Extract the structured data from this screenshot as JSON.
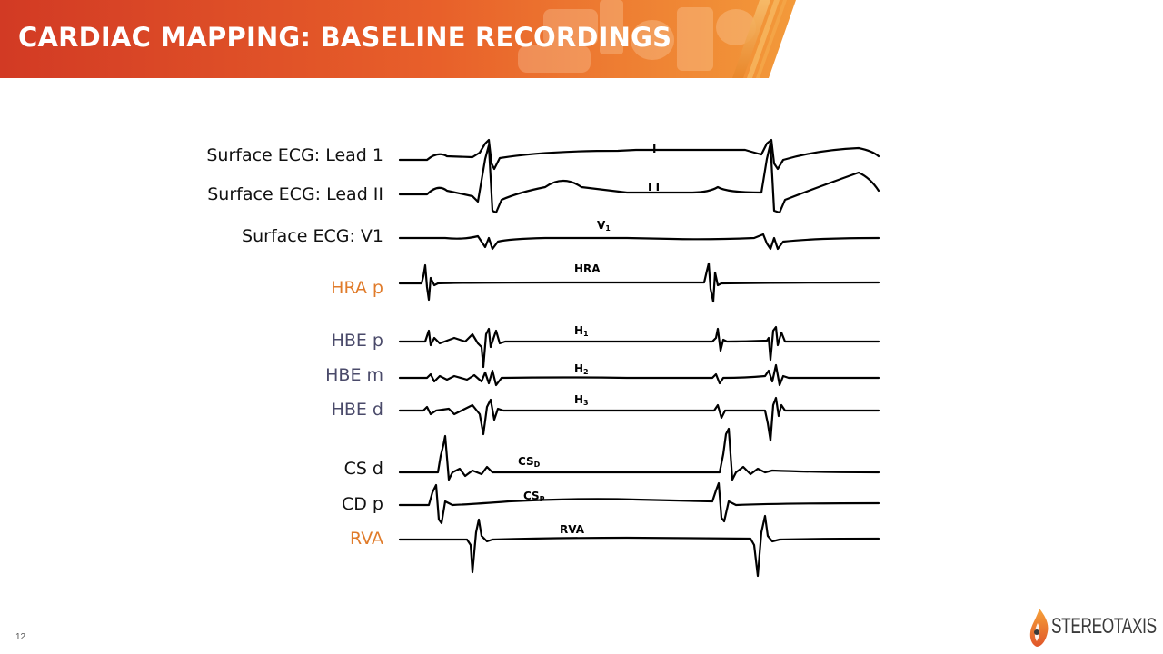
{
  "slide": {
    "title": "CARDIAC MAPPING: BASELINE RECORDINGS",
    "slide_number": "12",
    "colors": {
      "banner_start": "#d23a24",
      "banner_end": "#f08a2a",
      "label_orange": "#e07b2a",
      "label_slate": "#4a4a6a",
      "label_black": "#111111"
    }
  },
  "channels": [
    {
      "label": "Surface ECG: Lead 1",
      "tag": "I"
    },
    {
      "label": "Surface ECG: Lead II",
      "tag": "II"
    },
    {
      "label": "Surface ECG: V1",
      "tag": "V1"
    },
    {
      "label": "HRA p",
      "tag": "HRA"
    },
    {
      "label": "HBE p",
      "tag": "H1"
    },
    {
      "label": "HBE m",
      "tag": "H2"
    },
    {
      "label": "HBE d",
      "tag": "H3"
    },
    {
      "label": "CS d",
      "tag": "CSD"
    },
    {
      "label": "CD p",
      "tag": "CSP"
    },
    {
      "label": "RVA",
      "tag": "RVA"
    }
  ],
  "logo": {
    "text": "STEREOTAXIS",
    "icon": "flame-icon"
  }
}
